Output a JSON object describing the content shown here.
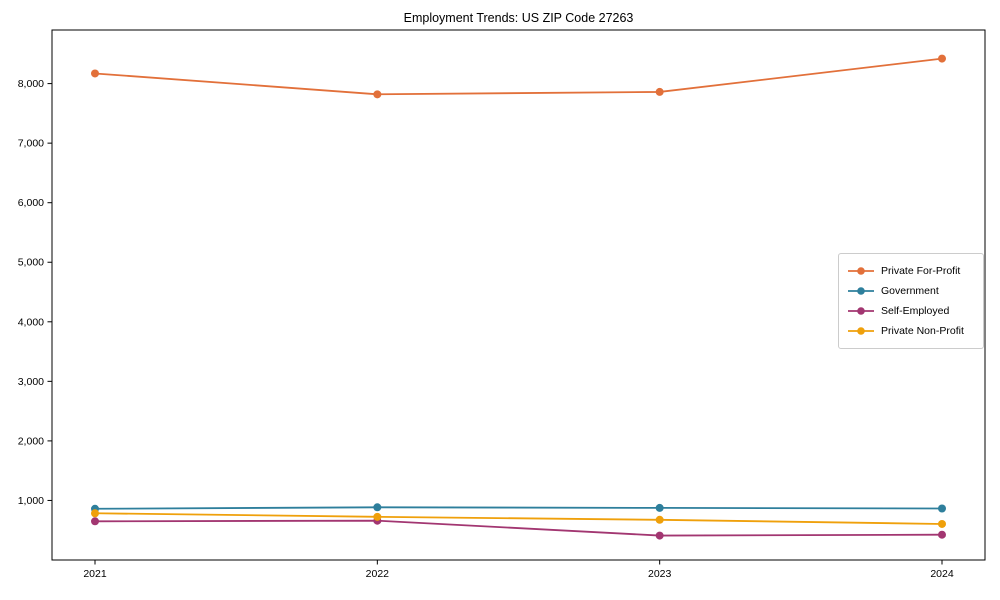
{
  "chart_data": {
    "type": "line",
    "title": "Employment Trends: US ZIP Code 27263",
    "categories": [
      "2021",
      "2022",
      "2023",
      "2024"
    ],
    "series": [
      {
        "name": "Private For-Profit",
        "color": "#E2703A",
        "values": [
          8170,
          7820,
          7860,
          8420
        ]
      },
      {
        "name": "Government",
        "color": "#2E7F9C",
        "values": [
          860,
          885,
          875,
          865
        ]
      },
      {
        "name": "Self-Employed",
        "color": "#A23671",
        "values": [
          650,
          660,
          410,
          425
        ]
      },
      {
        "name": "Private Non-Profit",
        "color": "#EFA00B",
        "values": [
          785,
          725,
          675,
          605
        ]
      }
    ],
    "xlabel": "",
    "ylabel": "",
    "ylim": [
      0,
      8900
    ],
    "yticks": [
      1000,
      2000,
      3000,
      4000,
      5000,
      6000,
      7000,
      8000
    ],
    "ytick_format": "comma",
    "grid": false,
    "legend_position": "center right",
    "marker": "circle"
  },
  "frame": {
    "background": "#ffffff",
    "spine_color": "#000000",
    "text_color": "#000000"
  }
}
